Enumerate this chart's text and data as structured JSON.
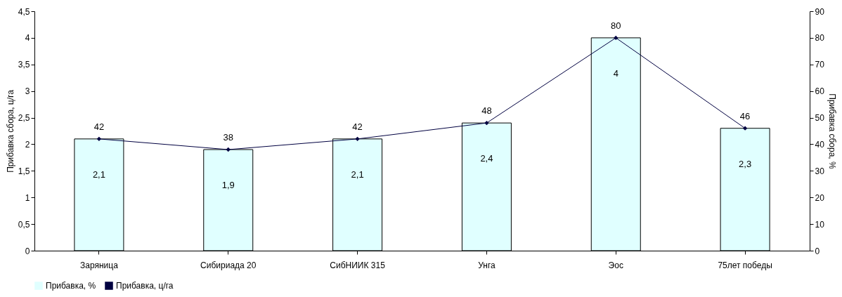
{
  "chart_data": {
    "type": "bar",
    "categories": [
      "Заряница",
      "Сибириада 20",
      "СибНИИК 315",
      "Унга",
      "Эос",
      "75лет победы"
    ],
    "series": [
      {
        "name": "Прибавка, %",
        "color": "#e0ffff",
        "values": [
          2.1,
          1.9,
          2.1,
          2.4,
          4,
          2.3
        ],
        "value_labels": [
          "2,1",
          "1,9",
          "2,1",
          "2,4",
          "4",
          "2,3"
        ]
      },
      {
        "name": "Прибавка, ц/га",
        "type": "line",
        "axis": "y2",
        "color": "#000040",
        "values": [
          42,
          38,
          42,
          48,
          80,
          46
        ],
        "value_labels": [
          "42",
          "38",
          "42",
          "48",
          "80",
          "46"
        ]
      }
    ],
    "ylabel": "Прибавка сбора, ц/га",
    "y2label": "Прибавка сбора, %",
    "ylim": [
      0,
      4.5
    ],
    "yticks": [
      0,
      {
        "value": 0.5,
        "label": "0,5"
      },
      1,
      {
        "value": 1.5,
        "label": "1,5"
      },
      2,
      {
        "value": 2.5,
        "label": "2,5"
      },
      3,
      {
        "value": 3.5,
        "label": "3,5"
      },
      4,
      {
        "value": 4.5,
        "label": "4,5"
      }
    ],
    "y2lim": [
      0,
      90
    ],
    "y2ticks": [
      0,
      10,
      20,
      30,
      40,
      50,
      60,
      70,
      80,
      90
    ],
    "legend": "bottom",
    "marker": "diamond",
    "grid": false
  }
}
